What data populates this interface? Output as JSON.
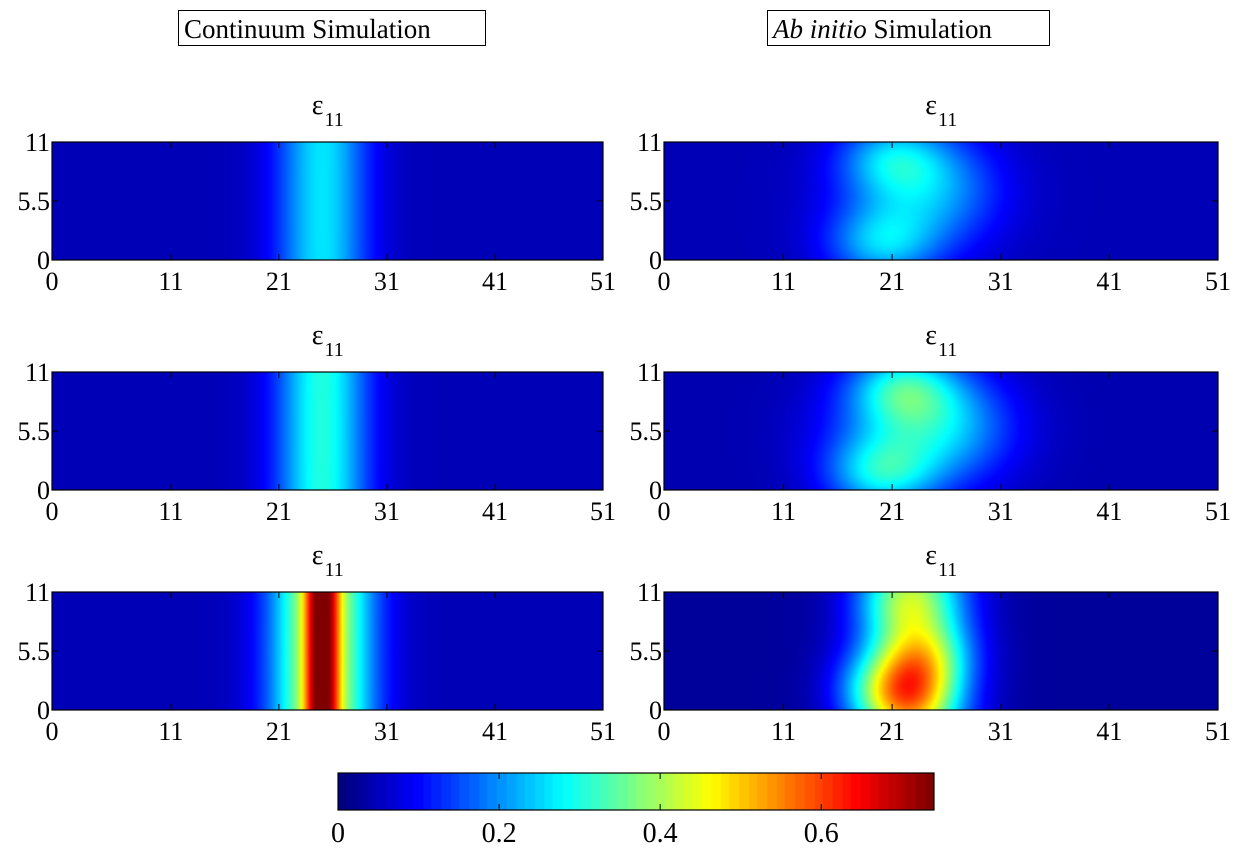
{
  "headers": {
    "left": "Continuum Simulation",
    "right_italic": "Ab initio",
    "right_rest": " Simulation"
  },
  "colormap": "jet",
  "chart_data": [
    {
      "type": "heatmap",
      "title_symbol": "ε",
      "title_subscript": "11",
      "column": "Continuum Simulation",
      "row": 1,
      "x_ticks": [
        0,
        11,
        21,
        31,
        41,
        51
      ],
      "y_ticks": [
        0,
        5.5,
        11
      ],
      "xlim": [
        0,
        51
      ],
      "ylim": [
        0,
        11
      ],
      "clim": [
        0,
        0.74
      ],
      "field": {
        "kind": "band",
        "center": 25,
        "baseline": 0.04,
        "blobs": [
          {
            "x": 25,
            "y": 5.5,
            "amp": 0.22,
            "sx": 3.0,
            "sy": 60
          }
        ]
      }
    },
    {
      "type": "heatmap",
      "title_symbol": "ε",
      "title_subscript": "11",
      "column": "Ab initio Simulation",
      "row": 1,
      "x_ticks": [
        0,
        11,
        21,
        31,
        41,
        51
      ],
      "y_ticks": [
        0,
        5.5,
        11
      ],
      "xlim": [
        0,
        51
      ],
      "ylim": [
        0,
        11
      ],
      "clim": [
        0,
        0.74
      ],
      "field": {
        "kind": "blobs",
        "baseline": 0.04,
        "blobs": [
          {
            "x": 21,
            "y": 9.5,
            "amp": 0.16,
            "sx": 3.5,
            "sy": 2.5
          },
          {
            "x": 20,
            "y": 1.5,
            "amp": 0.16,
            "sx": 3.5,
            "sy": 2.5
          },
          {
            "x": 23,
            "y": 5.5,
            "amp": 0.11,
            "sx": 5.0,
            "sy": 4.0
          },
          {
            "x": 26,
            "y": 7,
            "amp": 0.07,
            "sx": 4.0,
            "sy": 3.5
          }
        ]
      }
    },
    {
      "type": "heatmap",
      "title_symbol": "ε",
      "title_subscript": "11",
      "column": "Continuum Simulation",
      "row": 2,
      "x_ticks": [
        0,
        11,
        21,
        31,
        41,
        51
      ],
      "y_ticks": [
        0,
        5.5,
        11
      ],
      "xlim": [
        0,
        51
      ],
      "ylim": [
        0,
        11
      ],
      "clim": [
        0,
        0.74
      ],
      "field": {
        "kind": "band",
        "center": 25,
        "baseline": 0.04,
        "blobs": [
          {
            "x": 25,
            "y": 5.5,
            "amp": 0.26,
            "sx": 3.0,
            "sy": 60
          }
        ]
      }
    },
    {
      "type": "heatmap",
      "title_symbol": "ε",
      "title_subscript": "11",
      "column": "Ab initio Simulation",
      "row": 2,
      "x_ticks": [
        0,
        11,
        21,
        31,
        41,
        51
      ],
      "y_ticks": [
        0,
        5.5,
        11
      ],
      "xlim": [
        0,
        51
      ],
      "ylim": [
        0,
        11
      ],
      "clim": [
        0,
        0.74
      ],
      "field": {
        "kind": "blobs",
        "baseline": 0.035,
        "blobs": [
          {
            "x": 22,
            "y": 9.5,
            "amp": 0.2,
            "sx": 3.5,
            "sy": 2.5
          },
          {
            "x": 20,
            "y": 1.5,
            "amp": 0.19,
            "sx": 3.5,
            "sy": 2.5
          },
          {
            "x": 23,
            "y": 5.5,
            "amp": 0.15,
            "sx": 5.5,
            "sy": 4.0
          },
          {
            "x": 27,
            "y": 6,
            "amp": 0.08,
            "sx": 4.0,
            "sy": 3.5
          }
        ]
      }
    },
    {
      "type": "heatmap",
      "title_symbol": "ε",
      "title_subscript": "11",
      "column": "Continuum Simulation",
      "row": 3,
      "x_ticks": [
        0,
        11,
        21,
        31,
        41,
        51
      ],
      "y_ticks": [
        0,
        5.5,
        11
      ],
      "xlim": [
        0,
        51
      ],
      "ylim": [
        0,
        11
      ],
      "clim": [
        0,
        0.74
      ],
      "field": {
        "kind": "band",
        "center": 25,
        "baseline": 0.04,
        "blobs": [
          {
            "x": 25,
            "y": 5.5,
            "amp": 0.43,
            "sx": 3.2,
            "sy": 60
          },
          {
            "x": 24.3,
            "y": 5.5,
            "amp": 0.24,
            "sx": 0.7,
            "sy": 60
          },
          {
            "x": 25.7,
            "y": 5.5,
            "amp": 0.24,
            "sx": 0.7,
            "sy": 60
          }
        ]
      }
    },
    {
      "type": "heatmap",
      "title_symbol": "ε",
      "title_subscript": "11",
      "column": "Ab initio Simulation",
      "row": 3,
      "x_ticks": [
        0,
        11,
        21,
        31,
        41,
        51
      ],
      "y_ticks": [
        0,
        5.5,
        11
      ],
      "xlim": [
        0,
        51
      ],
      "ylim": [
        0,
        11
      ],
      "clim": [
        0,
        0.74
      ],
      "field": {
        "kind": "blobs",
        "baseline": 0.02,
        "blobs": [
          {
            "x": 23,
            "y": 5.5,
            "amp": 0.3,
            "sx": 3.6,
            "sy": 60
          },
          {
            "x": 22,
            "y": 1.5,
            "amp": 0.25,
            "sx": 3.0,
            "sy": 2.5
          },
          {
            "x": 24,
            "y": 5,
            "amp": 0.15,
            "sx": 3.0,
            "sy": 2.5
          },
          {
            "x": 22,
            "y": 10,
            "amp": 0.1,
            "sx": 3.0,
            "sy": 2.0
          },
          {
            "x": 18,
            "y": 2,
            "amp": 0.06,
            "sx": 2.5,
            "sy": 2.5
          }
        ]
      }
    }
  ],
  "colorbar": {
    "ticks": [
      0,
      0.2,
      0.4,
      0.6
    ],
    "min": 0,
    "max": 0.74
  }
}
